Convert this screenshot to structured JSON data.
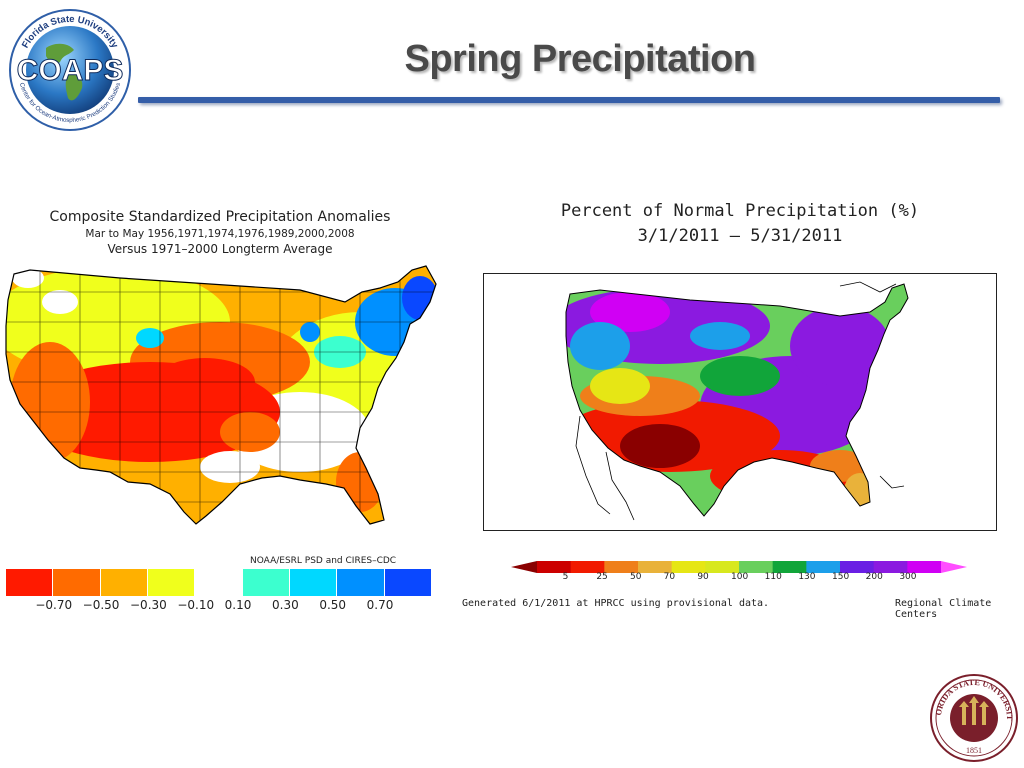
{
  "slide": {
    "title": "Spring Precipitation"
  },
  "logo_left": {
    "main_text": "COAPS",
    "ring_top": "Florida State University",
    "ring_bottom": "Center for Ocean-Atmospheric Prediction Studies",
    "icon": "globe-icon"
  },
  "logo_right": {
    "ring_text": "FLORIDA STATE UNIVERSITY",
    "year": "1851",
    "icon": "fsu-seal-icon"
  },
  "left_map": {
    "title": "Composite Standardized Precipitation Anomalies",
    "subtitle": "Mar to May   1956,1971,1974,1976,1989,2000,2008",
    "subtitle2": "Versus 1971–2000 Longterm Average",
    "credit": "NOAA/ESRL PSD and CIRES–CDC",
    "legend_colors": [
      "#ff1a00",
      "#ff6b00",
      "#ffb000",
      "#f0ff1c",
      "#ffffff",
      "#3cffcf",
      "#00d8ff",
      "#0090ff",
      "#0a48ff"
    ],
    "legend_ticks": [
      "−0.70",
      "−0.50",
      "−0.30",
      "−0.10",
      "0.10",
      "0.30",
      "0.50",
      "0.70"
    ]
  },
  "right_map": {
    "title": "Percent of Normal Precipitation (%)",
    "date_range": "3/1/2011 – 5/31/2011",
    "legend_colors": [
      "#8a0000",
      "#cc0000",
      "#f11a00",
      "#ef7f1a",
      "#e9b23a",
      "#e6e615",
      "#d8e81e",
      "#69cf5d",
      "#11a53a",
      "#1c9fea",
      "#6a1fe4",
      "#8b1ae0",
      "#d000f4",
      "#ff4dff"
    ],
    "legend_ticks": [
      "5",
      "25",
      "50",
      "70",
      "90",
      "100",
      "110",
      "130",
      "150",
      "200",
      "300"
    ],
    "generated": "Generated 6/1/2011 at HPRCC using provisional data.",
    "source": "Regional Climate Centers"
  }
}
